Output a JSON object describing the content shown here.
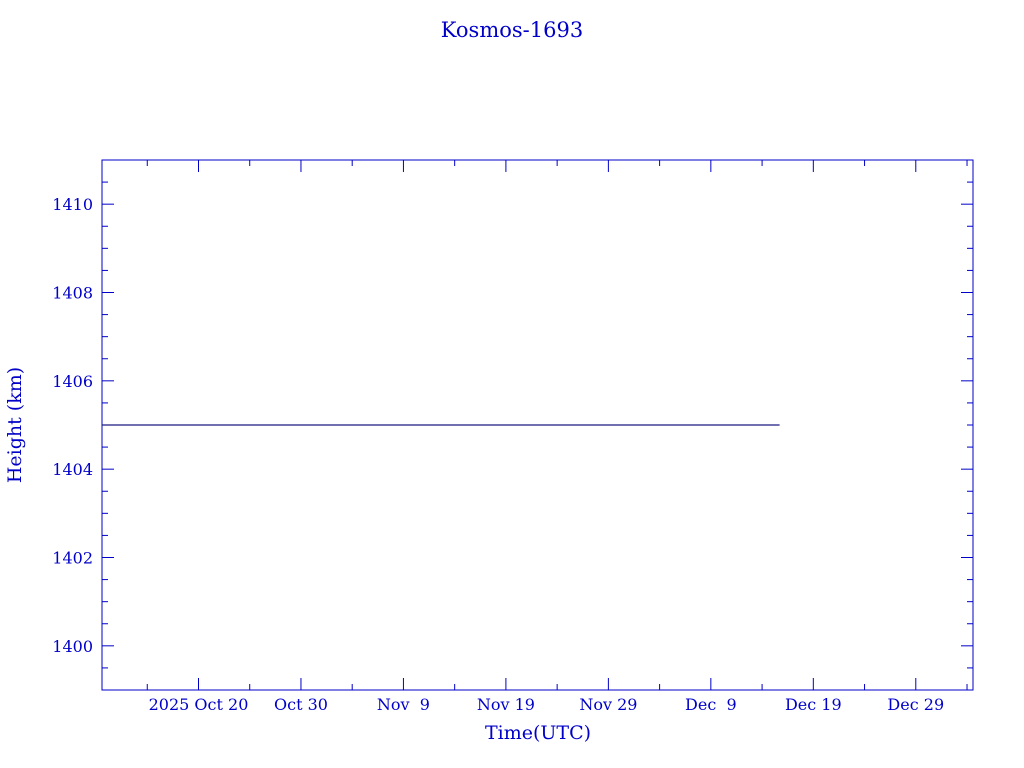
{
  "chart_data": {
    "type": "line",
    "title": "Kosmos-1693",
    "xlabel": "Time(UTC)",
    "ylabel": "Height (km)",
    "xlim": [
      "2025-10-10T14:00",
      "2026-01-03T14:00"
    ],
    "ylim": [
      1399,
      1411
    ],
    "x_ticks": [
      {
        "date": "2025-10-20",
        "label": "2025 Oct 20"
      },
      {
        "date": "2025-10-30",
        "label": "Oct 30"
      },
      {
        "date": "2025-11-09",
        "label": "Nov  9"
      },
      {
        "date": "2025-11-19",
        "label": "Nov 19"
      },
      {
        "date": "2025-11-29",
        "label": "Nov 29"
      },
      {
        "date": "2025-12-09",
        "label": "Dec  9"
      },
      {
        "date": "2025-12-19",
        "label": "Dec 19"
      },
      {
        "date": "2025-12-29",
        "label": "Dec 29"
      }
    ],
    "y_ticks": [
      1400,
      1402,
      1404,
      1406,
      1408,
      1410
    ],
    "grid": false,
    "series": [
      {
        "x": [
          "2025-10-10T14:00",
          "2025-12-15T17:00"
        ],
        "y": [
          1405,
          1405
        ],
        "color": "#1a1a80"
      }
    ],
    "colors": {
      "axis": "#0000c8",
      "text": "#0000c8",
      "line": "#1a1a80"
    }
  }
}
